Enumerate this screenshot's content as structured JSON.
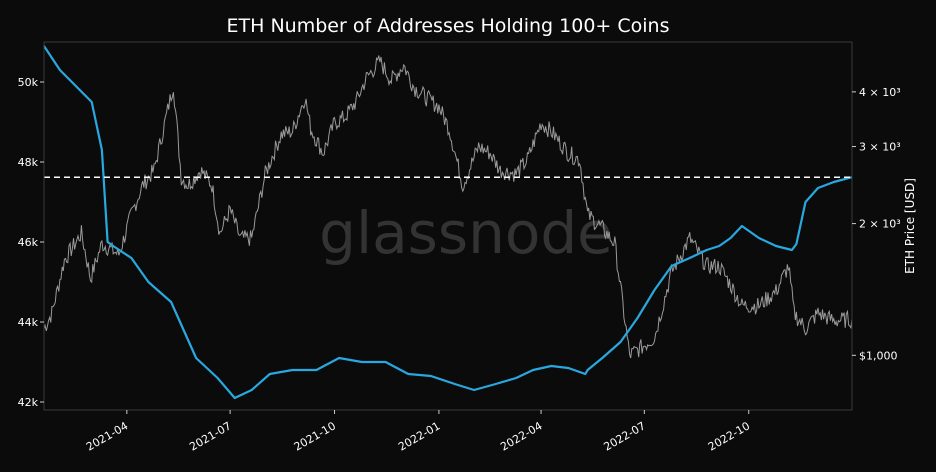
{
  "chart_data": {
    "type": "line",
    "title": "ETH Number of Addresses Holding 100+ Coins",
    "watermark": "glassnode",
    "ylabel_right": "ETH Price [USD]",
    "x_ticks": [
      "2021-04",
      "2021-07",
      "2021-10",
      "2022-01",
      "2022-04",
      "2022-07",
      "2022-10"
    ],
    "x_tick_dates": [
      "2021-04-01",
      "2021-07-01",
      "2021-10-01",
      "2022-01-01",
      "2022-04-01",
      "2022-07-01",
      "2022-10-01"
    ],
    "x_range": [
      "2021-01-18",
      "2022-12-31"
    ],
    "y_left": {
      "ticks": [
        "42k",
        "44k",
        "46k",
        "48k",
        "50k"
      ],
      "tick_values": [
        42000,
        44000,
        46000,
        48000,
        50000
      ],
      "range": [
        41800,
        51000
      ]
    },
    "y_right": {
      "scale": "log",
      "ticks": [
        "$1,000",
        "2 × 10³",
        "3 × 10³",
        "4 × 10³"
      ],
      "tick_values": [
        1000,
        2000,
        3000,
        4000
      ],
      "range": [
        750,
        5200
      ]
    },
    "reference_line": {
      "axis": "left",
      "value": 47620,
      "style": "dashed",
      "color": "#ffffff"
    },
    "colors": {
      "background": "#0b0b0b",
      "addresses": "#29a8e0",
      "price": "#9a9a9a",
      "text": "#ffffff"
    },
    "series": [
      {
        "axis": "left",
        "x": [
          "2021-01-18",
          "2021-02-01",
          "2021-02-15",
          "2021-03-01",
          "2021-03-10",
          "2021-03-15",
          "2021-03-20",
          "2021-04-05",
          "2021-04-20",
          "2021-05-10",
          "2021-06-01",
          "2021-06-20",
          "2021-07-05",
          "2021-07-20",
          "2021-08-05",
          "2021-08-25",
          "2021-09-15",
          "2021-10-05",
          "2021-10-25",
          "2021-11-15",
          "2021-12-05",
          "2021-12-25",
          "2022-01-15",
          "2022-02-01",
          "2022-02-20",
          "2022-03-10",
          "2022-03-25",
          "2022-04-10",
          "2022-04-25",
          "2022-05-10",
          "2022-05-12",
          "2022-05-25",
          "2022-06-10",
          "2022-06-25",
          "2022-07-10",
          "2022-07-25",
          "2022-08-10",
          "2022-08-25",
          "2022-09-05",
          "2022-09-15",
          "2022-09-25",
          "2022-10-10",
          "2022-10-25",
          "2022-11-08",
          "2022-11-12",
          "2022-11-20",
          "2022-12-01",
          "2022-12-15",
          "2022-12-31"
        ],
        "values": [
          50900,
          50300,
          49900,
          49500,
          48300,
          46000,
          45900,
          45600,
          45000,
          44500,
          43100,
          42600,
          42100,
          42300,
          42700,
          42800,
          42800,
          43100,
          43000,
          43000,
          42700,
          42650,
          42450,
          42300,
          42450,
          42600,
          42800,
          42900,
          42850,
          42700,
          42800,
          43100,
          43500,
          44100,
          44800,
          45400,
          45600,
          45800,
          45900,
          46100,
          46400,
          46100,
          45900,
          45800,
          45950,
          47000,
          47350,
          47500,
          47620
        ]
      },
      {
        "axis": "right",
        "x": [
          "2021-01-18",
          "2021-01-25",
          "2021-02-05",
          "2021-02-20",
          "2021-02-28",
          "2021-03-10",
          "2021-03-25",
          "2021-04-05",
          "2021-04-15",
          "2021-04-25",
          "2021-05-05",
          "2021-05-12",
          "2021-05-19",
          "2021-05-25",
          "2021-06-05",
          "2021-06-15",
          "2021-06-22",
          "2021-07-01",
          "2021-07-10",
          "2021-07-20",
          "2021-08-01",
          "2021-08-15",
          "2021-08-25",
          "2021-09-05",
          "2021-09-10",
          "2021-09-21",
          "2021-10-01",
          "2021-10-10",
          "2021-10-20",
          "2021-10-29",
          "2021-11-10",
          "2021-11-20",
          "2021-12-01",
          "2021-12-10",
          "2021-12-20",
          "2022-01-01",
          "2022-01-10",
          "2022-01-22",
          "2022-02-05",
          "2022-02-15",
          "2022-02-24",
          "2022-03-10",
          "2022-03-20",
          "2022-04-01",
          "2022-04-10",
          "2022-04-25",
          "2022-05-05",
          "2022-05-12",
          "2022-05-25",
          "2022-06-05",
          "2022-06-13",
          "2022-06-18",
          "2022-06-30",
          "2022-07-10",
          "2022-07-25",
          "2022-08-10",
          "2022-08-25",
          "2022-09-05",
          "2022-09-15",
          "2022-09-25",
          "2022-10-10",
          "2022-10-25",
          "2022-11-05",
          "2022-11-10",
          "2022-11-20",
          "2022-12-01",
          "2022-12-15",
          "2022-12-31"
        ],
        "values": [
          1150,
          1250,
          1650,
          1900,
          1500,
          1800,
          1700,
          2100,
          2450,
          2650,
          3450,
          4150,
          2550,
          2450,
          2650,
          2450,
          1900,
          2150,
          1850,
          1850,
          2600,
          3200,
          3250,
          3900,
          3300,
          2900,
          3400,
          3500,
          3800,
          4300,
          4700,
          4250,
          4600,
          4100,
          3900,
          3700,
          3300,
          2450,
          3000,
          2900,
          2650,
          2600,
          2800,
          3400,
          3250,
          2900,
          2800,
          2100,
          1950,
          1800,
          1250,
          1000,
          1050,
          1100,
          1550,
          1850,
          1600,
          1600,
          1450,
          1300,
          1300,
          1400,
          1600,
          1250,
          1150,
          1250,
          1200,
          1210
        ]
      }
    ]
  }
}
